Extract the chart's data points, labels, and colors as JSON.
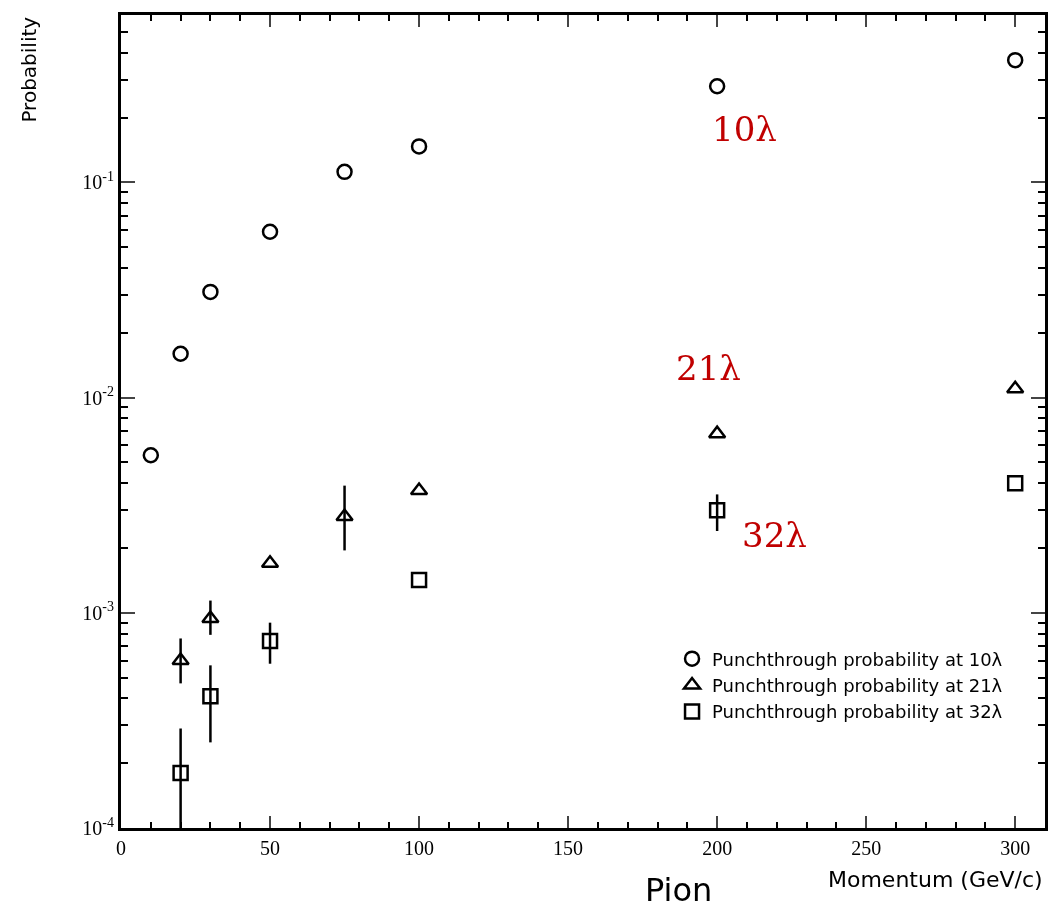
{
  "chart_data": {
    "type": "scatter",
    "xlabel": "Momentum (GeV/c)",
    "ylabel": "Probability",
    "x": [
      10,
      20,
      30,
      50,
      75,
      100,
      200,
      300
    ],
    "series": [
      {
        "name": "Punchthrough probability at 10λ",
        "color": "#000000",
        "marker": "circle",
        "values": [
          0.0054,
          0.016,
          0.031,
          0.059,
          0.112,
          0.147,
          0.28,
          0.37
        ]
      },
      {
        "name": "Punchthrough probability at 21λ",
        "color": "#000000",
        "marker": "triangle",
        "values": [
          0.0006,
          0.00094,
          0.0017,
          0.0028,
          0.0037,
          0.0068,
          0.011
        ],
        "x": [
          20,
          30,
          50,
          75,
          100,
          200,
          300
        ],
        "errors": [
          [
            0.00047,
            0.00076
          ],
          [
            0.00079,
            0.00114
          ],
          null,
          [
            0.00195,
            0.0039
          ],
          null,
          null,
          null
        ]
      },
      {
        "name": "Punchthrough probability at 32λ",
        "color": "#000000",
        "marker": "square",
        "values": [
          0.00018,
          0.00041,
          0.00074,
          0.00142,
          0.003,
          0.004
        ],
        "x": [
          20,
          30,
          50,
          100,
          200,
          300
        ],
        "errors": [
          [
            0.0001,
            0.00029
          ],
          [
            0.00025,
            0.00057
          ],
          [
            0.00058,
            0.0009
          ],
          null,
          [
            0.0024,
            0.00355
          ],
          null
        ]
      }
    ],
    "log": "y",
    "xlim": [
      0,
      310
    ],
    "ylim": [
      0.0001,
      0.6
    ],
    "xticks": [
      0,
      50,
      100,
      150,
      200,
      250,
      300
    ],
    "yticks": [
      {
        "value": 0.0001,
        "label": "10$^{-4}$"
      },
      {
        "value": 0.001,
        "label": "10$^{-3}$"
      },
      {
        "value": 0.01,
        "label": "10$^{-2}$"
      },
      {
        "value": 0.1,
        "label": "10$^{-1}$"
      }
    ],
    "legend": "bottom right",
    "annotations": [
      "10λ",
      "21λ",
      "32λ",
      "Pion"
    ]
  }
}
